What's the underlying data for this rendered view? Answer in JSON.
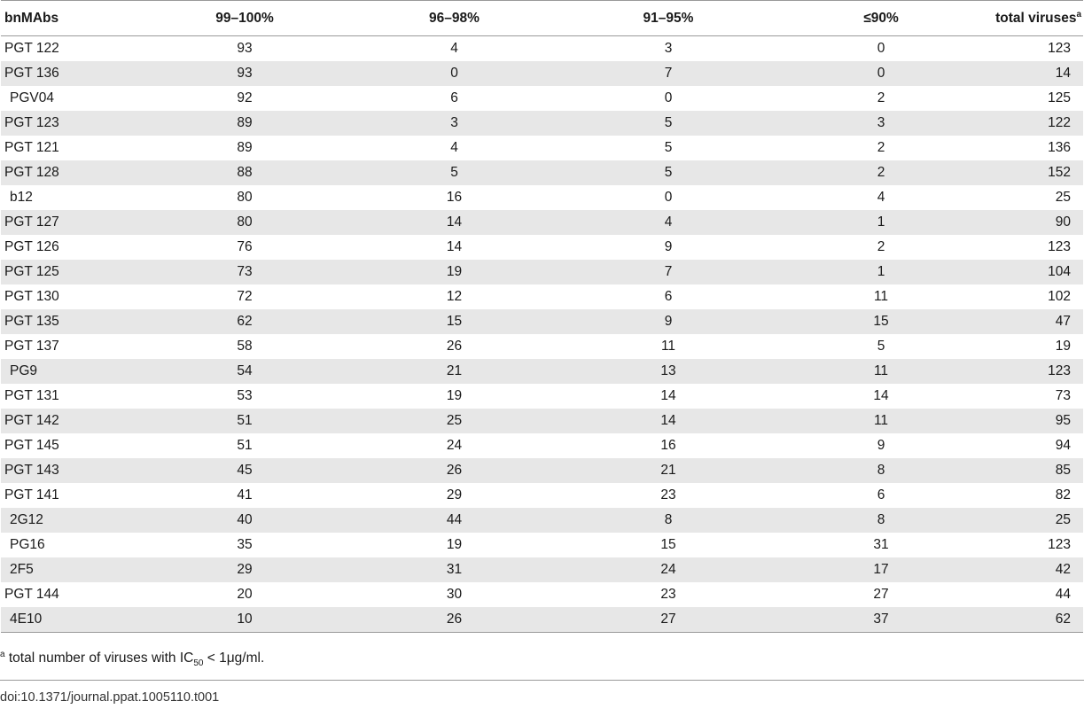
{
  "table": {
    "headers": [
      "bnMAbs",
      "99–100%",
      "96–98%",
      "91–95%",
      "≤90%",
      "total viruses"
    ],
    "total_header_sup": "a",
    "rows": [
      {
        "name": "PGT 122",
        "indent": false,
        "v": [
          "93",
          "4",
          "3",
          "0",
          "123"
        ]
      },
      {
        "name": "PGT 136",
        "indent": false,
        "v": [
          "93",
          "0",
          "7",
          "0",
          "14"
        ]
      },
      {
        "name": "PGV04",
        "indent": true,
        "v": [
          "92",
          "6",
          "0",
          "2",
          "125"
        ]
      },
      {
        "name": "PGT 123",
        "indent": false,
        "v": [
          "89",
          "3",
          "5",
          "3",
          "122"
        ]
      },
      {
        "name": "PGT 121",
        "indent": false,
        "v": [
          "89",
          "4",
          "5",
          "2",
          "136"
        ]
      },
      {
        "name": "PGT 128",
        "indent": false,
        "v": [
          "88",
          "5",
          "5",
          "2",
          "152"
        ]
      },
      {
        "name": "b12",
        "indent": true,
        "v": [
          "80",
          "16",
          "0",
          "4",
          "25"
        ]
      },
      {
        "name": "PGT 127",
        "indent": false,
        "v": [
          "80",
          "14",
          "4",
          "1",
          "90"
        ]
      },
      {
        "name": "PGT 126",
        "indent": false,
        "v": [
          "76",
          "14",
          "9",
          "2",
          "123"
        ]
      },
      {
        "name": "PGT 125",
        "indent": false,
        "v": [
          "73",
          "19",
          "7",
          "1",
          "104"
        ]
      },
      {
        "name": "PGT 130",
        "indent": false,
        "v": [
          "72",
          "12",
          "6",
          "11",
          "102"
        ]
      },
      {
        "name": "PGT 135",
        "indent": false,
        "v": [
          "62",
          "15",
          "9",
          "15",
          "47"
        ]
      },
      {
        "name": "PGT 137",
        "indent": false,
        "v": [
          "58",
          "26",
          "11",
          "5",
          "19"
        ]
      },
      {
        "name": "PG9",
        "indent": true,
        "v": [
          "54",
          "21",
          "13",
          "11",
          "123"
        ]
      },
      {
        "name": "PGT 131",
        "indent": false,
        "v": [
          "53",
          "19",
          "14",
          "14",
          "73"
        ]
      },
      {
        "name": "PGT 142",
        "indent": false,
        "v": [
          "51",
          "25",
          "14",
          "11",
          "95"
        ]
      },
      {
        "name": "PGT 145",
        "indent": false,
        "v": [
          "51",
          "24",
          "16",
          "9",
          "94"
        ]
      },
      {
        "name": "PGT 143",
        "indent": false,
        "v": [
          "45",
          "26",
          "21",
          "8",
          "85"
        ]
      },
      {
        "name": "PGT 141",
        "indent": false,
        "v": [
          "41",
          "29",
          "23",
          "6",
          "82"
        ]
      },
      {
        "name": "2G12",
        "indent": true,
        "v": [
          "40",
          "44",
          "8",
          "8",
          "25"
        ]
      },
      {
        "name": "PG16",
        "indent": true,
        "v": [
          "35",
          "19",
          "15",
          "31",
          "123"
        ]
      },
      {
        "name": "2F5",
        "indent": true,
        "v": [
          "29",
          "31",
          "24",
          "17",
          "42"
        ]
      },
      {
        "name": "PGT 144",
        "indent": false,
        "v": [
          "20",
          "30",
          "23",
          "27",
          "44"
        ]
      },
      {
        "name": "4E10",
        "indent": true,
        "v": [
          "10",
          "26",
          "27",
          "37",
          "62"
        ]
      }
    ]
  },
  "footnote": {
    "marker": "a",
    "text_before": " total number of viruses with IC",
    "subscript": "50",
    "text_after": " < 1μg/ml."
  },
  "doi": "doi:10.1371/journal.ppat.1005110.t001",
  "colors": {
    "stripe": "#e7e7e7",
    "rule": "#9a9a9a",
    "text": "#1a1a1a"
  }
}
